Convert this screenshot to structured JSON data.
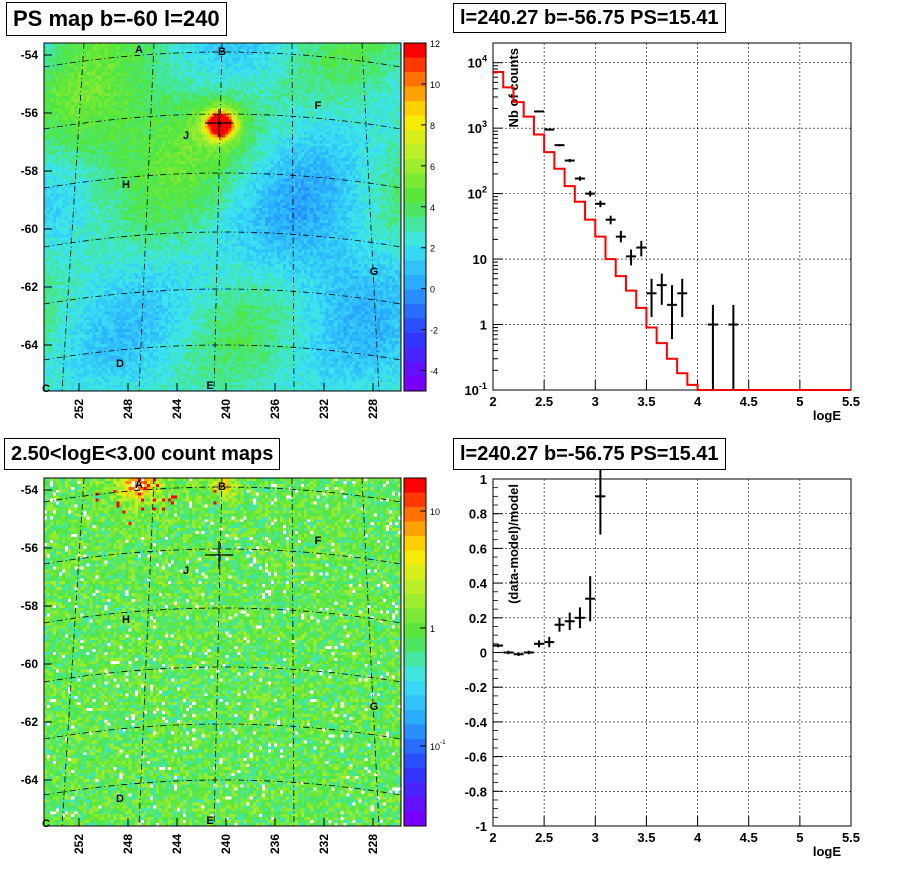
{
  "panels": {
    "map1": {
      "title": "PS map b=-60 l=240"
    },
    "spec": {
      "title": "l=240.27 b=-56.75 PS=15.41"
    },
    "map2": {
      "title": "2.50<logE<3.00 count maps"
    },
    "resid": {
      "title": "l=240.27 b=-56.75 PS=15.41"
    }
  },
  "chart_data": [
    {
      "type": "heatmap",
      "title": "PS map b=-60 l=240",
      "x_ticks": [
        "252",
        "248",
        "244",
        "240",
        "236",
        "232",
        "228"
      ],
      "y_ticks": [
        "-54",
        "-56",
        "-58",
        "-60",
        "-62",
        "-64"
      ],
      "colorbar_ticks": [
        "12",
        "10",
        "8",
        "6",
        "4",
        "2",
        "0",
        "-2",
        "-4"
      ],
      "colorbar_range": [
        -5,
        12
      ],
      "source_labels": [
        "A",
        "B",
        "C",
        "D",
        "E",
        "F",
        "G",
        "H",
        "J"
      ],
      "peak": {
        "l": 240.27,
        "b": -56.2,
        "value": 12
      },
      "colors": {
        "low": "#6a00ff",
        "mid": "#33ccff",
        "high": "#ff0000"
      }
    },
    {
      "type": "line",
      "title": "l=240.27 b=-56.75 PS=15.41",
      "xlabel": "logE",
      "ylabel": "Nb of counts",
      "xlim": [
        2,
        5.5
      ],
      "ylim": [
        0.1,
        20000
      ],
      "yscale": "log",
      "x_ticks": [
        "2",
        "2.5",
        "3",
        "3.5",
        "4",
        "4.5",
        "5",
        "5.5"
      ],
      "y_ticks": [
        "10^{4}",
        "10^{3}",
        "10^{2}",
        "10",
        "1",
        "10^{-1}"
      ],
      "grid": true,
      "series": [
        {
          "role": "model",
          "color": "#ff0000",
          "edges": [
            2.0,
            2.1,
            2.2,
            2.3,
            2.4,
            2.5,
            2.6,
            2.7,
            2.8,
            2.9,
            3.0,
            3.1,
            3.2,
            3.3,
            3.4,
            3.5,
            3.6,
            3.7,
            3.8,
            3.9,
            4.0,
            5.5
          ],
          "values": [
            7200,
            4200,
            2500,
            1500,
            800,
            430,
            240,
            130,
            75,
            40,
            22,
            10,
            5.5,
            3.3,
            1.8,
            0.9,
            0.52,
            0.3,
            0.18,
            0.12,
            0.1
          ]
        },
        {
          "role": "data",
          "color": "#000000",
          "x": [
            2.45,
            2.55,
            2.65,
            2.75,
            2.85,
            2.95,
            3.05,
            3.15,
            3.25,
            3.35,
            3.45,
            3.55,
            3.65,
            3.75,
            3.85,
            4.15,
            4.35
          ],
          "y": [
            1800,
            950,
            550,
            320,
            170,
            100,
            70,
            40,
            22,
            11,
            15,
            3,
            4,
            2,
            3,
            1,
            1
          ],
          "yerr_lo": [
            1760,
            919,
            527,
            302,
            157,
            90,
            62,
            34,
            18,
            8,
            11,
            1.3,
            2,
            0.6,
            1.3,
            0.1,
            0.1
          ],
          "yerr_hi": [
            1840,
            981,
            573,
            338,
            183,
            110,
            78,
            46,
            27,
            14,
            19,
            5,
            6,
            4,
            5,
            2,
            2
          ]
        }
      ]
    },
    {
      "type": "heatmap",
      "title": "2.50<logE<3.00 count maps",
      "x_ticks": [
        "252",
        "248",
        "244",
        "240",
        "236",
        "232",
        "228"
      ],
      "y_ticks": [
        "-54",
        "-56",
        "-58",
        "-60",
        "-62",
        "-64"
      ],
      "colorbar_ticks": [
        "10",
        "1",
        "10^{-1}"
      ],
      "colorbar_scale": "log",
      "source_labels": [
        "A",
        "B",
        "C",
        "D",
        "E",
        "F",
        "G",
        "H",
        "J"
      ]
    },
    {
      "type": "scatter",
      "title": "l=240.27 b=-56.75 PS=15.41",
      "xlabel": "logE",
      "ylabel": "(data-model)/model",
      "xlim": [
        2,
        5.5
      ],
      "ylim": [
        -1,
        1
      ],
      "x_ticks": [
        "2",
        "2.5",
        "3",
        "3.5",
        "4",
        "4.5",
        "5",
        "5.5"
      ],
      "y_ticks": [
        "1",
        "0.8",
        "0.6",
        "0.4",
        "0.2",
        "0",
        "-0.2",
        "-0.4",
        "-0.6",
        "-0.8",
        "-1"
      ],
      "grid": true,
      "series": [
        {
          "role": "residual",
          "color": "#000000",
          "x": [
            2.05,
            2.15,
            2.25,
            2.35,
            2.45,
            2.55,
            2.65,
            2.75,
            2.85,
            2.95,
            3.05
          ],
          "y": [
            0.04,
            0.0,
            -0.01,
            0.0,
            0.05,
            0.06,
            0.16,
            0.18,
            0.2,
            0.31,
            0.9
          ],
          "yerr": [
            0.01,
            0.01,
            0.01,
            0.01,
            0.02,
            0.03,
            0.04,
            0.05,
            0.06,
            0.13,
            0.22
          ]
        }
      ]
    }
  ]
}
